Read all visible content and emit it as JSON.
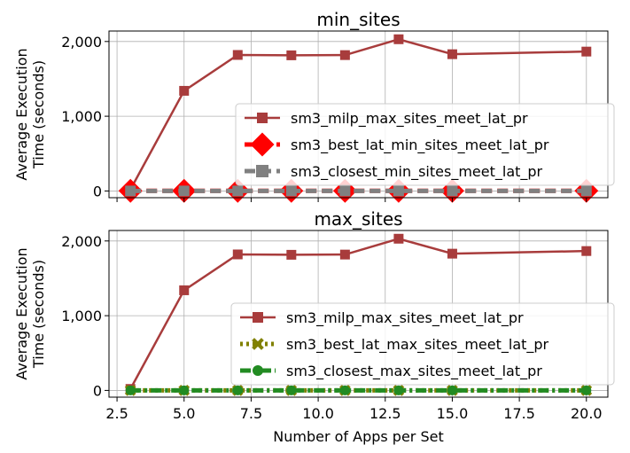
{
  "chart_data": [
    {
      "type": "line",
      "title": "min_sites",
      "ylabel": "Average Execution\nTime (seconds)",
      "xlabel": "",
      "xlim": [
        2.2,
        20.8
      ],
      "ylim": [
        -90,
        2140
      ],
      "xticks": [
        2.5,
        5.0,
        7.5,
        10.0,
        12.5,
        15.0,
        17.5,
        20.0
      ],
      "xtick_labels_shown": false,
      "yticks": [
        0,
        1000,
        2000
      ],
      "ytick_labels": [
        "0",
        "1,000",
        "2,000"
      ],
      "grid": true,
      "legend_position": "lower-right",
      "x": [
        3,
        5,
        7,
        9,
        11,
        13,
        15,
        20
      ],
      "series": [
        {
          "name": "sm3_milp_max_sites_meet_lat_pr",
          "color": "#a83c3c",
          "linestyle": "solid",
          "marker": "square",
          "values": [
            20,
            1340,
            1820,
            1815,
            1818,
            2030,
            1830,
            1865
          ]
        },
        {
          "name": "sm3_best_lat_min_sites_meet_lat_pr",
          "color": "#ff0000",
          "linestyle": "dashed",
          "marker": "diamond",
          "values": [
            2,
            2,
            2,
            2,
            2,
            2,
            2,
            2
          ]
        },
        {
          "name": "sm3_closest_min_sites_meet_lat_pr",
          "color": "#808080",
          "linestyle": "dashed",
          "marker": "square",
          "values": [
            0,
            0,
            0,
            0,
            0,
            0,
            0,
            0
          ]
        }
      ]
    },
    {
      "type": "line",
      "title": "max_sites",
      "ylabel": "Average Execution\nTime (seconds)",
      "xlabel": "Number of Apps per Set",
      "xlim": [
        2.2,
        20.8
      ],
      "ylim": [
        -90,
        2140
      ],
      "xticks": [
        2.5,
        5.0,
        7.5,
        10.0,
        12.5,
        15.0,
        17.5,
        20.0
      ],
      "xtick_labels": [
        "2.5",
        "5.0",
        "7.5",
        "10.0",
        "12.5",
        "15.0",
        "17.5",
        "20.0"
      ],
      "xtick_labels_shown": true,
      "yticks": [
        0,
        1000,
        2000
      ],
      "ytick_labels": [
        "0",
        "1,000",
        "2,000"
      ],
      "grid": true,
      "legend_position": "lower-right",
      "x": [
        3,
        5,
        7,
        9,
        11,
        13,
        15,
        20
      ],
      "series": [
        {
          "name": "sm3_milp_max_sites_meet_lat_pr",
          "color": "#a83c3c",
          "linestyle": "solid",
          "marker": "square",
          "values": [
            20,
            1340,
            1820,
            1815,
            1818,
            2030,
            1830,
            1865
          ]
        },
        {
          "name": "sm3_best_lat_max_sites_meet_lat_pr",
          "color": "#808000",
          "linestyle": "dotted",
          "marker": "x",
          "values": [
            1,
            1,
            1,
            1,
            1,
            1,
            1,
            1
          ]
        },
        {
          "name": "sm3_closest_max_sites_meet_lat_pr",
          "color": "#228b22",
          "linestyle": "dashdot",
          "marker": "circle",
          "values": [
            0,
            0,
            0,
            0,
            0,
            0,
            0,
            0
          ]
        }
      ]
    }
  ]
}
